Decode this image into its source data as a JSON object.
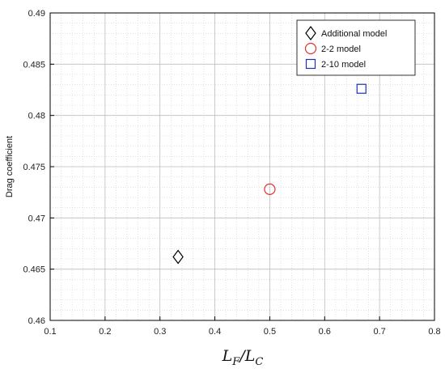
{
  "chart_data": {
    "type": "scatter",
    "xlabel": "L_F/L_C",
    "ylabel": "Drag coefficient",
    "xlim": [
      0.1,
      0.8
    ],
    "ylim": [
      0.46,
      0.49
    ],
    "xticks": [
      "0.1",
      "0.2",
      "0.3",
      "0.4",
      "0.5",
      "0.6",
      "0.7",
      "0.8"
    ],
    "yticks": [
      "0.46",
      "0.465",
      "0.47",
      "0.475",
      "0.48",
      "0.485",
      "0.49"
    ],
    "grid": true,
    "minor_grid": true,
    "legend_position": "top-right",
    "series": [
      {
        "name": "Additional model",
        "marker": "diamond",
        "color": "#000000",
        "points": [
          {
            "x": 0.333,
            "y": 0.4662
          }
        ]
      },
      {
        "name": "2-2 model",
        "marker": "circle",
        "color": "#e53030",
        "points": [
          {
            "x": 0.5,
            "y": 0.4728
          }
        ]
      },
      {
        "name": "2-10 model",
        "marker": "square",
        "color": "#1f2fbf",
        "points": [
          {
            "x": 0.667,
            "y": 0.4826
          }
        ]
      }
    ]
  }
}
